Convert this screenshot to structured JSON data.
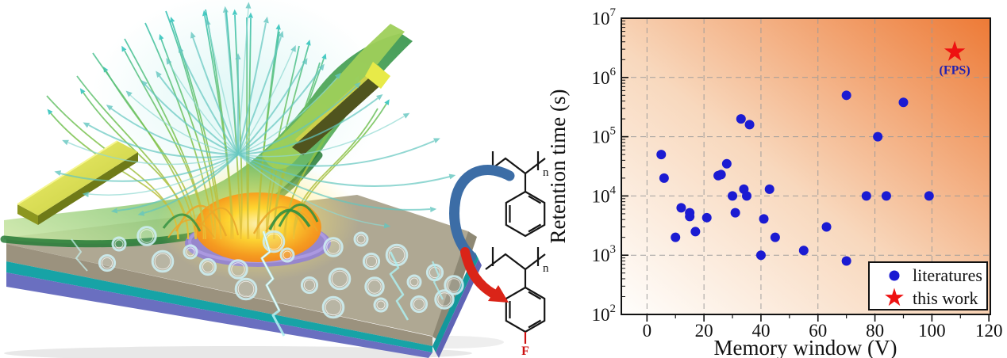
{
  "illustration": {
    "fluorine_color": "#cc1111",
    "transform_arrow_up_color": "#3c6da6",
    "transform_arrow_down_color": "#da2418",
    "chem_top": {
      "subscript": "n"
    },
    "chem_bottom": {
      "subscript": "n",
      "fluorine_label": "F"
    }
  },
  "chart_data": {
    "type": "scatter",
    "xlabel": "Memory window (V)",
    "ylabel": "Retention time (s)",
    "xlim": [
      -9,
      120.5
    ],
    "ylim_exponents": [
      2,
      7
    ],
    "x_ticks": [
      0,
      20,
      40,
      60,
      80,
      100,
      120
    ],
    "y_tick_exponents": [
      2,
      3,
      4,
      5,
      6,
      7
    ],
    "y_scale": "log",
    "grid": "dashed",
    "background_gradient": [
      "#fffefc",
      "#f8d8bd",
      "#ed7a36"
    ],
    "series": [
      {
        "name": "literatures",
        "marker": "circle",
        "color": "#1b1bd2",
        "points": [
          [
            5,
            50000
          ],
          [
            6,
            20000
          ],
          [
            10,
            2000
          ],
          [
            12,
            6300
          ],
          [
            15,
            5200
          ],
          [
            15,
            4500
          ],
          [
            17,
            2500
          ],
          [
            21,
            4300
          ],
          [
            25,
            22000
          ],
          [
            26,
            23000
          ],
          [
            28,
            35000
          ],
          [
            30,
            10000
          ],
          [
            31,
            5200
          ],
          [
            33,
            200000
          ],
          [
            34,
            13000
          ],
          [
            35,
            10000
          ],
          [
            36,
            160000
          ],
          [
            40,
            1000
          ],
          [
            41,
            4100
          ],
          [
            43,
            13000
          ],
          [
            45,
            2000
          ],
          [
            55,
            1200
          ],
          [
            63,
            3000
          ],
          [
            70,
            500000
          ],
          [
            70,
            800
          ],
          [
            77,
            10000
          ],
          [
            81,
            100000
          ],
          [
            84,
            10000
          ],
          [
            90,
            380000
          ],
          [
            99,
            10000
          ]
        ]
      },
      {
        "name": "this work",
        "marker": "star",
        "color": "#ee1111",
        "points": [
          [
            108,
            2700000
          ]
        ],
        "annotation": "(FPS)",
        "annotation_color": "#2121b0"
      }
    ],
    "legend": {
      "position": "bottom-right",
      "entries": [
        "literatures",
        "this work"
      ]
    }
  }
}
